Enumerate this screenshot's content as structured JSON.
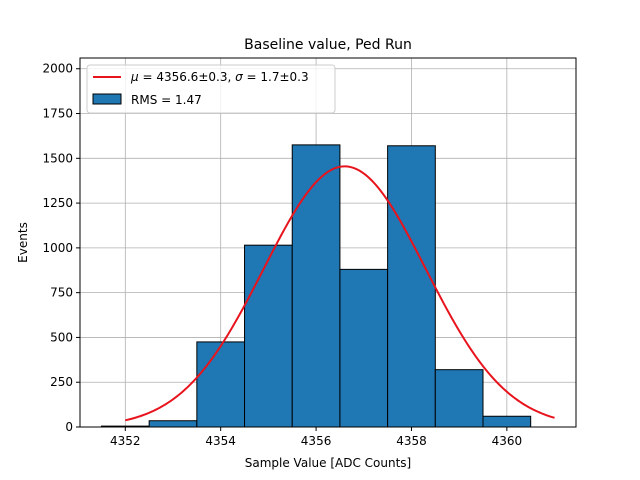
{
  "chart_data": {
    "type": "bar",
    "title": "Baseline value, Ped Run",
    "xlabel": "Sample Value [ADC Counts]",
    "ylabel": "Events",
    "xlim": [
      4351.05,
      4361.45
    ],
    "ylim": [
      0,
      2060
    ],
    "xticks": [
      4352,
      4354,
      4356,
      4358,
      4360
    ],
    "yticks": [
      0,
      250,
      500,
      750,
      1000,
      1250,
      1500,
      1750,
      2000
    ],
    "grid": true,
    "legend_position": "top-left",
    "histogram": {
      "name": "RMS = 1.47",
      "color": "#1f77b4",
      "edge_color": "#000000",
      "bin_edges": [
        4351.5,
        4352.5,
        4353.5,
        4354.5,
        4355.5,
        4356.5,
        4357.5,
        4358.5,
        4359.5,
        4360.5
      ],
      "values": [
        5,
        35,
        475,
        1015,
        1575,
        880,
        1570,
        320,
        60
      ]
    },
    "fit": {
      "name": "μ = 4356.6±0.3, σ = 1.7±0.3",
      "label_parts": {
        "mu_symbol": "μ",
        "mu_text": " = 4356.6±0.3, ",
        "sigma_symbol": "σ",
        "sigma_text": " = 1.7±0.3"
      },
      "color": "#e8141d",
      "type": "gaussian",
      "amplitude": 1455,
      "mean": 4356.6,
      "sigma": 1.7,
      "x_range": [
        4352,
        4361
      ]
    }
  }
}
